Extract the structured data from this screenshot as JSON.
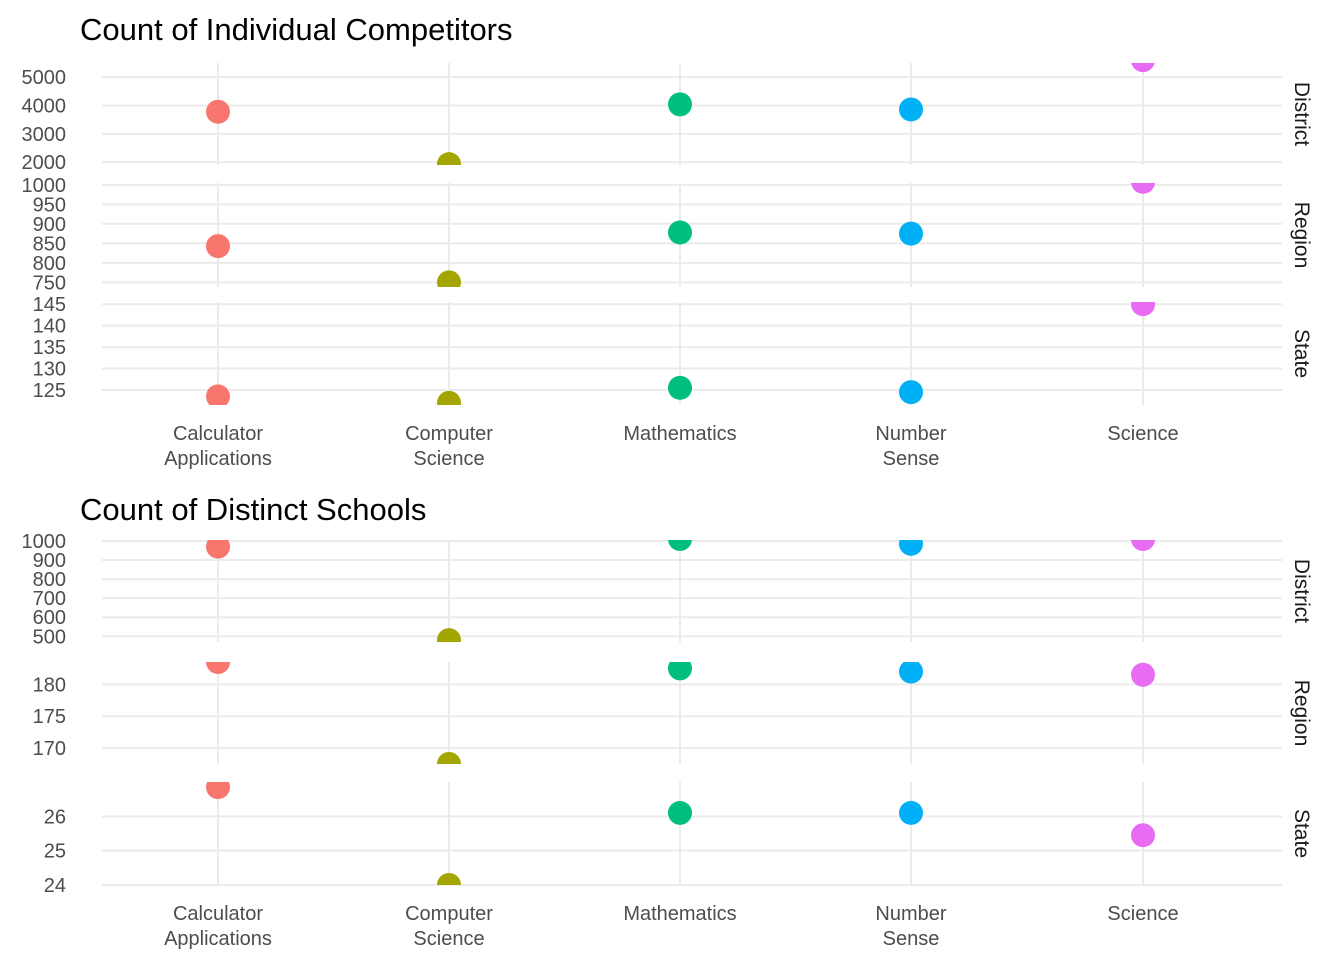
{
  "chart_data": [
    {
      "type": "scatter",
      "title": "Count of Individual Competitors",
      "categories": [
        "Calculator\nApplications",
        "Computer\nScience",
        "Mathematics",
        "Number\nSense",
        "Science"
      ],
      "colors": [
        "#F8766D",
        "#A3A500",
        "#00BF7D",
        "#00B0F6",
        "#E76BF3"
      ],
      "panels": [
        {
          "name": "District",
          "ylim": [
            1900,
            5500
          ],
          "yticks": [
            2000,
            3000,
            4000,
            5000
          ],
          "values": [
            3780,
            1930,
            4040,
            3860,
            5600
          ]
        },
        {
          "name": "Region",
          "ylim": [
            738,
            1005
          ],
          "yticks": [
            750,
            800,
            850,
            900,
            950,
            1000
          ],
          "values": [
            843,
            750,
            878,
            875,
            1008
          ]
        },
        {
          "name": "State",
          "ylim": [
            121.5,
            145.5
          ],
          "yticks": [
            125,
            130,
            135,
            140,
            145
          ],
          "values": [
            123.5,
            122,
            125.5,
            124.5,
            145
          ]
        }
      ]
    },
    {
      "type": "scatter",
      "title": "Count of Distinct Schools",
      "categories": [
        "Calculator\nApplications",
        "Computer\nScience",
        "Mathematics",
        "Number\nSense",
        "Science"
      ],
      "colors": [
        "#F8766D",
        "#A3A500",
        "#00BF7D",
        "#00B0F6",
        "#E76BF3"
      ],
      "panels": [
        {
          "name": "District",
          "ylim": [
            470,
            1005
          ],
          "yticks": [
            500,
            600,
            700,
            800,
            900,
            1000
          ],
          "values": [
            970,
            480,
            1010,
            985,
            1010
          ]
        },
        {
          "name": "Region",
          "ylim": [
            167.5,
            183.5
          ],
          "yticks": [
            170,
            175,
            180
          ],
          "values": [
            183.5,
            167.5,
            182.5,
            182,
            181.5
          ]
        },
        {
          "name": "State",
          "ylim": [
            24,
            27
          ],
          "yticks": [
            24,
            25,
            26
          ],
          "values": [
            26.85,
            24,
            26.1,
            26.1,
            25.45
          ]
        }
      ]
    }
  ]
}
